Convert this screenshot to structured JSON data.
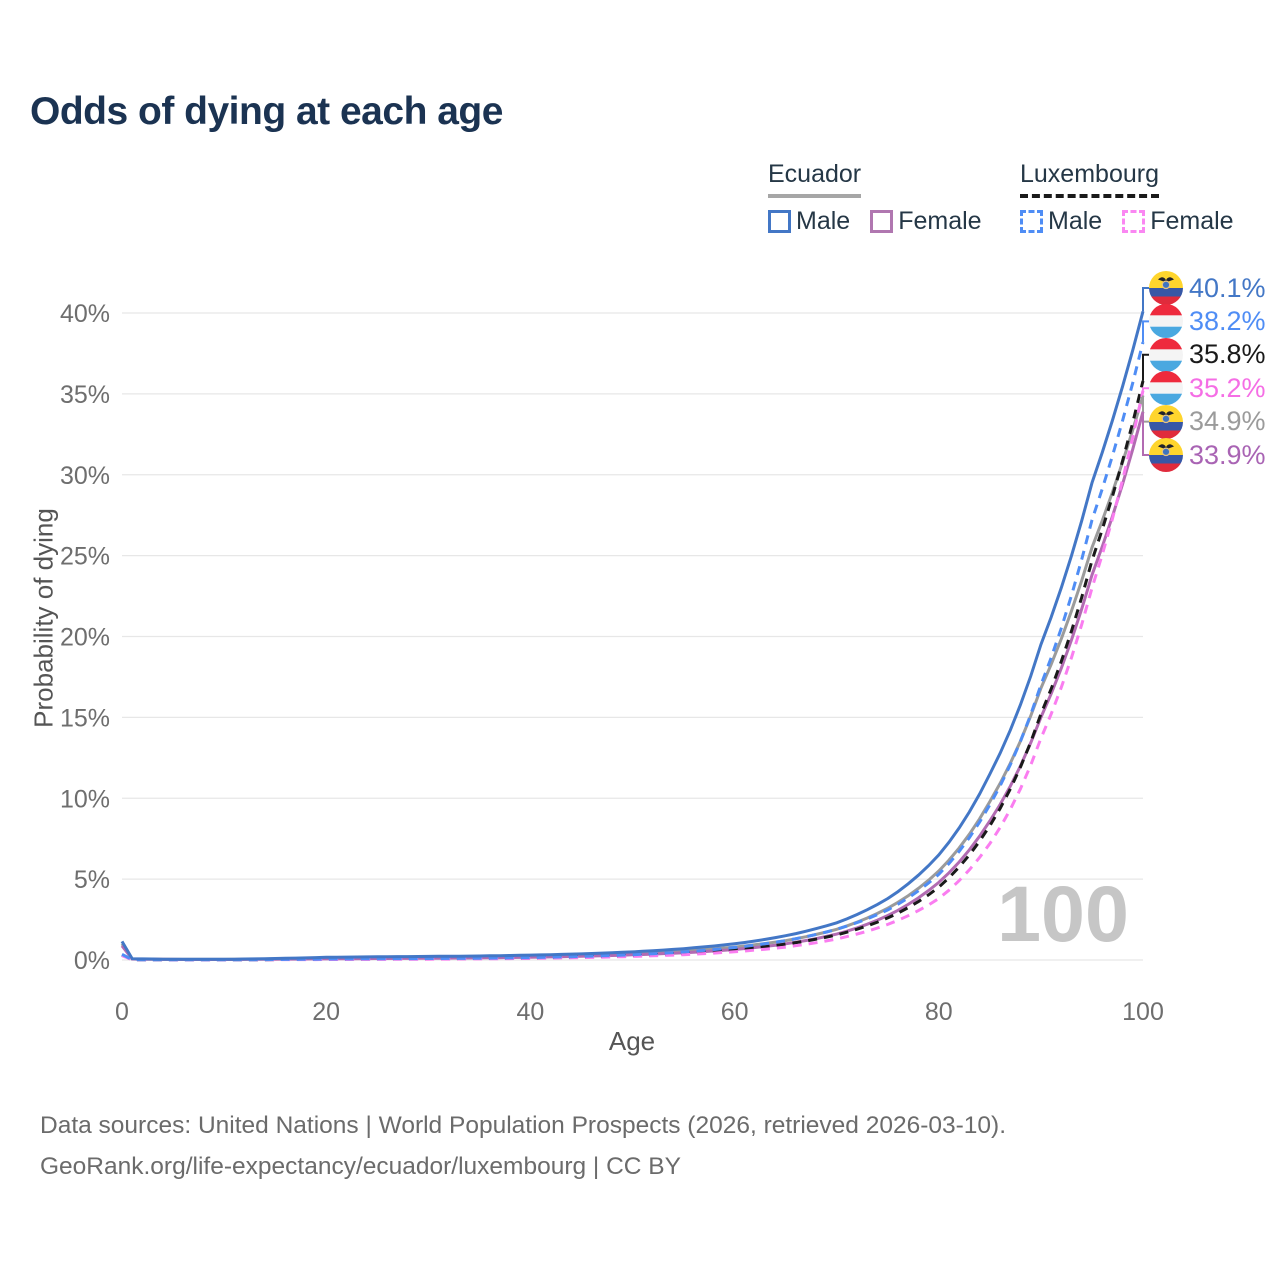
{
  "legend": {
    "groups": [
      {
        "name": "Ecuador",
        "style": "solid",
        "underline_color": "#a6a6a6",
        "items": [
          {
            "label": "Male",
            "color": "#4377c6",
            "dashed": false
          },
          {
            "label": "Female",
            "color": "#b077b0",
            "dashed": false
          }
        ]
      },
      {
        "name": "Luxembourg",
        "style": "dashed",
        "underline_color": "#1a1a1a",
        "items": [
          {
            "label": "Male",
            "color": "#4f8df5",
            "dashed": true
          },
          {
            "label": "Female",
            "color": "#fa87f2",
            "dashed": true
          }
        ]
      }
    ]
  },
  "chart_data": {
    "type": "line",
    "title": "Odds of dying at each age",
    "xlabel": "Age",
    "ylabel": "Probability of dying",
    "x_ticks": [
      0,
      20,
      40,
      60,
      80,
      100
    ],
    "y_ticks": [
      "0%",
      "5%",
      "10%",
      "15%",
      "20%",
      "25%",
      "30%",
      "35%",
      "40%"
    ],
    "xlim": [
      0,
      100
    ],
    "ylim": [
      0,
      41.5
    ],
    "grid": true,
    "legend_position": "top-right",
    "watermark": "100",
    "series": [
      {
        "name": "Ecuador",
        "sex": "Both sexes",
        "country": "ecuador",
        "color": "#9b9b9b",
        "dashed": false,
        "end_label": "34.9%",
        "label_color": "#9b9b9b",
        "points": [
          [
            0,
            1.0
          ],
          [
            1,
            0.07
          ],
          [
            5,
            0.04
          ],
          [
            10,
            0.035
          ],
          [
            15,
            0.07
          ],
          [
            20,
            0.12
          ],
          [
            25,
            0.15
          ],
          [
            30,
            0.16
          ],
          [
            35,
            0.18
          ],
          [
            40,
            0.22
          ],
          [
            45,
            0.29
          ],
          [
            50,
            0.4
          ],
          [
            55,
            0.56
          ],
          [
            60,
            0.8
          ],
          [
            65,
            1.2
          ],
          [
            70,
            1.9
          ],
          [
            75,
            3.2
          ],
          [
            80,
            5.5
          ],
          [
            85,
            9.8
          ],
          [
            90,
            16.8
          ],
          [
            95,
            25.5
          ],
          [
            100,
            34.9
          ]
        ]
      },
      {
        "name": "Ecuador Female",
        "sex": "Female",
        "country": "ecuador",
        "color": "#b26bb2",
        "dashed": false,
        "end_label": "33.9%",
        "label_color": "#a964b4",
        "points": [
          [
            0,
            0.88
          ],
          [
            1,
            0.06
          ],
          [
            5,
            0.035
          ],
          [
            10,
            0.03
          ],
          [
            15,
            0.05
          ],
          [
            20,
            0.07
          ],
          [
            25,
            0.09
          ],
          [
            30,
            0.11
          ],
          [
            35,
            0.13
          ],
          [
            40,
            0.17
          ],
          [
            45,
            0.23
          ],
          [
            50,
            0.32
          ],
          [
            55,
            0.45
          ],
          [
            60,
            0.65
          ],
          [
            65,
            1.0
          ],
          [
            70,
            1.6
          ],
          [
            75,
            2.75
          ],
          [
            80,
            4.8
          ],
          [
            85,
            8.6
          ],
          [
            90,
            15.0
          ],
          [
            95,
            23.8
          ],
          [
            100,
            33.9
          ]
        ]
      },
      {
        "name": "Luxembourg",
        "sex": "Both sexes",
        "country": "luxembourg",
        "color": "#1a1a1a",
        "dashed": true,
        "end_label": "35.8%",
        "label_color": "#1a1a1a",
        "points": [
          [
            0,
            0.3
          ],
          [
            1,
            0.02
          ],
          [
            5,
            0.01
          ],
          [
            10,
            0.01
          ],
          [
            15,
            0.025
          ],
          [
            20,
            0.045
          ],
          [
            25,
            0.06
          ],
          [
            30,
            0.07
          ],
          [
            35,
            0.09
          ],
          [
            40,
            0.12
          ],
          [
            45,
            0.18
          ],
          [
            50,
            0.27
          ],
          [
            55,
            0.41
          ],
          [
            60,
            0.63
          ],
          [
            65,
            0.98
          ],
          [
            70,
            1.55
          ],
          [
            75,
            2.6
          ],
          [
            80,
            4.5
          ],
          [
            85,
            8.3
          ],
          [
            90,
            15.2
          ],
          [
            95,
            24.7
          ],
          [
            100,
            35.8
          ]
        ]
      },
      {
        "name": "Luxembourg Female",
        "sex": "Female",
        "country": "luxembourg",
        "color": "#fa7df0",
        "dashed": true,
        "end_label": "35.2%",
        "label_color": "#f56ee5",
        "points": [
          [
            0,
            0.27
          ],
          [
            1,
            0.018
          ],
          [
            5,
            0.009
          ],
          [
            10,
            0.009
          ],
          [
            15,
            0.02
          ],
          [
            20,
            0.03
          ],
          [
            25,
            0.04
          ],
          [
            30,
            0.05
          ],
          [
            35,
            0.07
          ],
          [
            40,
            0.1
          ],
          [
            45,
            0.15
          ],
          [
            50,
            0.22
          ],
          [
            55,
            0.33
          ],
          [
            60,
            0.51
          ],
          [
            65,
            0.8
          ],
          [
            70,
            1.3
          ],
          [
            75,
            2.2
          ],
          [
            80,
            3.8
          ],
          [
            85,
            7.2
          ],
          [
            90,
            13.7
          ],
          [
            95,
            23.0
          ],
          [
            100,
            35.2
          ]
        ]
      },
      {
        "name": "Luxembourg Male",
        "sex": "Male",
        "country": "luxembourg",
        "color": "#4f8df5",
        "dashed": true,
        "end_label": "38.2%",
        "label_color": "#4f8df5",
        "points": [
          [
            0,
            0.35
          ],
          [
            1,
            0.025
          ],
          [
            5,
            0.012
          ],
          [
            10,
            0.012
          ],
          [
            15,
            0.03
          ],
          [
            20,
            0.06
          ],
          [
            25,
            0.08
          ],
          [
            30,
            0.09
          ],
          [
            35,
            0.11
          ],
          [
            40,
            0.15
          ],
          [
            45,
            0.22
          ],
          [
            50,
            0.33
          ],
          [
            55,
            0.5
          ],
          [
            60,
            0.77
          ],
          [
            65,
            1.2
          ],
          [
            70,
            1.9
          ],
          [
            75,
            3.1
          ],
          [
            80,
            5.3
          ],
          [
            85,
            9.6
          ],
          [
            90,
            17.0
          ],
          [
            95,
            27.2
          ],
          [
            100,
            38.2
          ]
        ]
      },
      {
        "name": "Ecuador Male",
        "sex": "Male",
        "country": "ecuador",
        "color": "#4377c6",
        "dashed": false,
        "end_label": "40.1%",
        "label_color": "#4377c6",
        "points": [
          [
            0,
            1.15
          ],
          [
            1,
            0.08
          ],
          [
            5,
            0.045
          ],
          [
            10,
            0.045
          ],
          [
            15,
            0.09
          ],
          [
            20,
            0.17
          ],
          [
            25,
            0.2
          ],
          [
            30,
            0.22
          ],
          [
            35,
            0.25
          ],
          [
            40,
            0.3
          ],
          [
            45,
            0.38
          ],
          [
            50,
            0.5
          ],
          [
            55,
            0.7
          ],
          [
            60,
            1.0
          ],
          [
            65,
            1.5
          ],
          [
            70,
            2.3
          ],
          [
            75,
            3.8
          ],
          [
            80,
            6.5
          ],
          [
            85,
            11.5
          ],
          [
            90,
            19.5
          ],
          [
            95,
            29.5
          ],
          [
            100,
            40.1
          ]
        ]
      }
    ]
  },
  "footer": {
    "line1": "Data sources: United Nations | World Population Prospects (2026, retrieved 2026-03-10).",
    "line2": "GeoRank.org/life-expectancy/ecuador/luxembourg | CC BY"
  }
}
